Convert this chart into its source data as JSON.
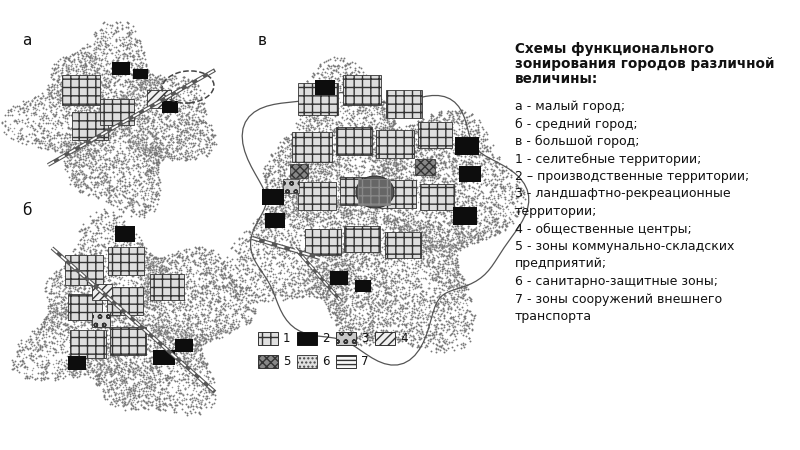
{
  "bg_color": "#ffffff",
  "text_color": "#111111",
  "title": "Схемы функционального\nзонирования городов различной\nвеличины:",
  "legend_rows": [
    [
      {
        "hatch": "++",
        "fc": "#e0e0e0",
        "ec": "#333333",
        "label": "1"
      },
      {
        "hatch": "",
        "fc": "#111111",
        "ec": "#111111",
        "label": "2"
      },
      {
        "hatch": "oo",
        "fc": "#d0d0d0",
        "ec": "#333333",
        "label": "3"
      },
      {
        "hatch": "////",
        "fc": "#f0f0f0",
        "ec": "#333333",
        "label": "4"
      }
    ],
    [
      {
        "hatch": "xxxx",
        "fc": "#888888",
        "ec": "#333333",
        "label": "5"
      },
      {
        "hatch": "....",
        "fc": "#cccccc",
        "ec": "#333333",
        "label": "6"
      },
      {
        "hatch": "----",
        "fc": "#f8f8f8",
        "ec": "#333333",
        "label": "7"
      }
    ]
  ],
  "legend_text": [
    "а - малый город;",
    "б - средний город;",
    "в - большой город;",
    "1 - селитебные территории;",
    "2 – производственные территории;",
    "3 - ландшафтно-рекреационные",
    "территории;",
    "4 - общественные центры;",
    "5 - зоны коммунально-складских",
    "предприятий;",
    "6 - санитарно-защитные зоны;",
    "7 - зоны сооружений внешнего",
    "транспорта"
  ]
}
